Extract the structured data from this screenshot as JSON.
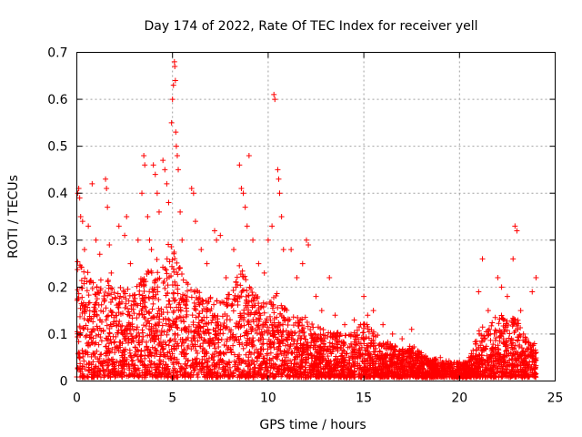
{
  "chart_data": {
    "type": "scatter",
    "title": "Day 174 of 2022, Rate Of TEC Index for receiver yell",
    "xlabel": "GPS time / hours",
    "ylabel": "ROTI / TECUs",
    "xlim": [
      0,
      25
    ],
    "ylim": [
      0,
      0.7
    ],
    "x_ticks": [
      0,
      5,
      10,
      15,
      20,
      25
    ],
    "x_tick_labels": [
      "0",
      "5",
      "10",
      "15",
      "20",
      "25"
    ],
    "y_ticks": [
      0,
      0.1,
      0.2,
      0.3,
      0.4,
      0.5,
      0.6,
      0.7
    ],
    "y_tick_labels": [
      "0",
      "0.1",
      "0.2",
      "0.3",
      "0.4",
      "0.5",
      "0.6",
      "0.7"
    ],
    "grid": true,
    "marker": "+",
    "color": "#ff0000",
    "series": [
      {
        "name": "ROTI",
        "points": [
          [
            0.05,
            0.4
          ],
          [
            0.1,
            0.41
          ],
          [
            0.15,
            0.39
          ],
          [
            0.2,
            0.35
          ],
          [
            0.3,
            0.34
          ],
          [
            0.4,
            0.28
          ],
          [
            0.6,
            0.33
          ],
          [
            0.8,
            0.42
          ],
          [
            1.0,
            0.3
          ],
          [
            1.2,
            0.27
          ],
          [
            1.5,
            0.43
          ],
          [
            1.55,
            0.41
          ],
          [
            1.6,
            0.37
          ],
          [
            1.7,
            0.29
          ],
          [
            1.8,
            0.23
          ],
          [
            2.2,
            0.33
          ],
          [
            2.5,
            0.31
          ],
          [
            2.6,
            0.35
          ],
          [
            2.8,
            0.25
          ],
          [
            3.2,
            0.3
          ],
          [
            3.4,
            0.4
          ],
          [
            3.5,
            0.48
          ],
          [
            3.55,
            0.46
          ],
          [
            3.7,
            0.35
          ],
          [
            3.8,
            0.3
          ],
          [
            3.9,
            0.28
          ],
          [
            4.0,
            0.46
          ],
          [
            4.1,
            0.44
          ],
          [
            4.2,
            0.4
          ],
          [
            4.3,
            0.36
          ],
          [
            4.5,
            0.47
          ],
          [
            4.6,
            0.45
          ],
          [
            4.7,
            0.42
          ],
          [
            4.8,
            0.38
          ],
          [
            4.95,
            0.55
          ],
          [
            5.0,
            0.6
          ],
          [
            5.05,
            0.63
          ],
          [
            5.1,
            0.68
          ],
          [
            5.12,
            0.67
          ],
          [
            5.15,
            0.64
          ],
          [
            5.17,
            0.53
          ],
          [
            5.2,
            0.5
          ],
          [
            5.25,
            0.48
          ],
          [
            5.3,
            0.45
          ],
          [
            5.4,
            0.36
          ],
          [
            5.5,
            0.3
          ],
          [
            6.0,
            0.41
          ],
          [
            6.1,
            0.4
          ],
          [
            6.2,
            0.34
          ],
          [
            6.5,
            0.28
          ],
          [
            6.8,
            0.25
          ],
          [
            7.2,
            0.32
          ],
          [
            7.3,
            0.3
          ],
          [
            7.5,
            0.31
          ],
          [
            7.8,
            0.22
          ],
          [
            8.2,
            0.28
          ],
          [
            8.5,
            0.46
          ],
          [
            8.6,
            0.41
          ],
          [
            8.7,
            0.4
          ],
          [
            8.8,
            0.37
          ],
          [
            8.9,
            0.33
          ],
          [
            9.0,
            0.48
          ],
          [
            9.2,
            0.3
          ],
          [
            9.5,
            0.25
          ],
          [
            9.8,
            0.23
          ],
          [
            10.0,
            0.3
          ],
          [
            10.2,
            0.33
          ],
          [
            10.3,
            0.61
          ],
          [
            10.35,
            0.6
          ],
          [
            10.5,
            0.45
          ],
          [
            10.55,
            0.43
          ],
          [
            10.6,
            0.4
          ],
          [
            10.7,
            0.35
          ],
          [
            10.8,
            0.28
          ],
          [
            11.2,
            0.28
          ],
          [
            11.5,
            0.22
          ],
          [
            11.8,
            0.25
          ],
          [
            12.0,
            0.3
          ],
          [
            12.1,
            0.29
          ],
          [
            12.5,
            0.18
          ],
          [
            12.8,
            0.15
          ],
          [
            13.2,
            0.22
          ],
          [
            13.5,
            0.14
          ],
          [
            14.0,
            0.12
          ],
          [
            14.5,
            0.13
          ],
          [
            15.0,
            0.18
          ],
          [
            15.2,
            0.14
          ],
          [
            15.5,
            0.15
          ],
          [
            16.0,
            0.12
          ],
          [
            16.5,
            0.1
          ],
          [
            17.0,
            0.09
          ],
          [
            17.5,
            0.11
          ],
          [
            18.0,
            0.06
          ],
          [
            19.0,
            0.05
          ],
          [
            20.0,
            0.04
          ],
          [
            20.5,
            0.05
          ],
          [
            21.0,
            0.19
          ],
          [
            21.2,
            0.26
          ],
          [
            21.5,
            0.15
          ],
          [
            22.0,
            0.22
          ],
          [
            22.2,
            0.2
          ],
          [
            22.5,
            0.18
          ],
          [
            22.8,
            0.26
          ],
          [
            22.9,
            0.33
          ],
          [
            23.0,
            0.32
          ],
          [
            23.2,
            0.15
          ],
          [
            23.5,
            0.09
          ],
          [
            23.8,
            0.19
          ],
          [
            24.0,
            0.22
          ]
        ],
        "envelope": [
          [
            0.0,
            0.28
          ],
          [
            0.5,
            0.24
          ],
          [
            1.0,
            0.2
          ],
          [
            1.5,
            0.22
          ],
          [
            2.0,
            0.18
          ],
          [
            2.5,
            0.2
          ],
          [
            3.0,
            0.19
          ],
          [
            3.5,
            0.22
          ],
          [
            4.0,
            0.24
          ],
          [
            4.5,
            0.27
          ],
          [
            5.0,
            0.3
          ],
          [
            5.5,
            0.22
          ],
          [
            6.0,
            0.2
          ],
          [
            6.5,
            0.18
          ],
          [
            7.0,
            0.17
          ],
          [
            7.5,
            0.16
          ],
          [
            8.0,
            0.18
          ],
          [
            8.5,
            0.24
          ],
          [
            9.0,
            0.2
          ],
          [
            9.5,
            0.17
          ],
          [
            10.0,
            0.16
          ],
          [
            10.5,
            0.18
          ],
          [
            11.0,
            0.15
          ],
          [
            11.5,
            0.13
          ],
          [
            12.0,
            0.13
          ],
          [
            12.5,
            0.11
          ],
          [
            13.0,
            0.1
          ],
          [
            13.5,
            0.1
          ],
          [
            14.0,
            0.09
          ],
          [
            14.5,
            0.1
          ],
          [
            15.0,
            0.12
          ],
          [
            15.5,
            0.1
          ],
          [
            16.0,
            0.08
          ],
          [
            16.5,
            0.07
          ],
          [
            17.0,
            0.06
          ],
          [
            17.5,
            0.07
          ],
          [
            18.0,
            0.05
          ],
          [
            18.5,
            0.04
          ],
          [
            19.0,
            0.04
          ],
          [
            19.5,
            0.035
          ],
          [
            20.0,
            0.03
          ],
          [
            20.5,
            0.035
          ],
          [
            21.0,
            0.1
          ],
          [
            21.5,
            0.12
          ],
          [
            22.0,
            0.14
          ],
          [
            22.5,
            0.12
          ],
          [
            23.0,
            0.13
          ],
          [
            23.5,
            0.08
          ],
          [
            24.0,
            0.07
          ]
        ]
      }
    ]
  }
}
